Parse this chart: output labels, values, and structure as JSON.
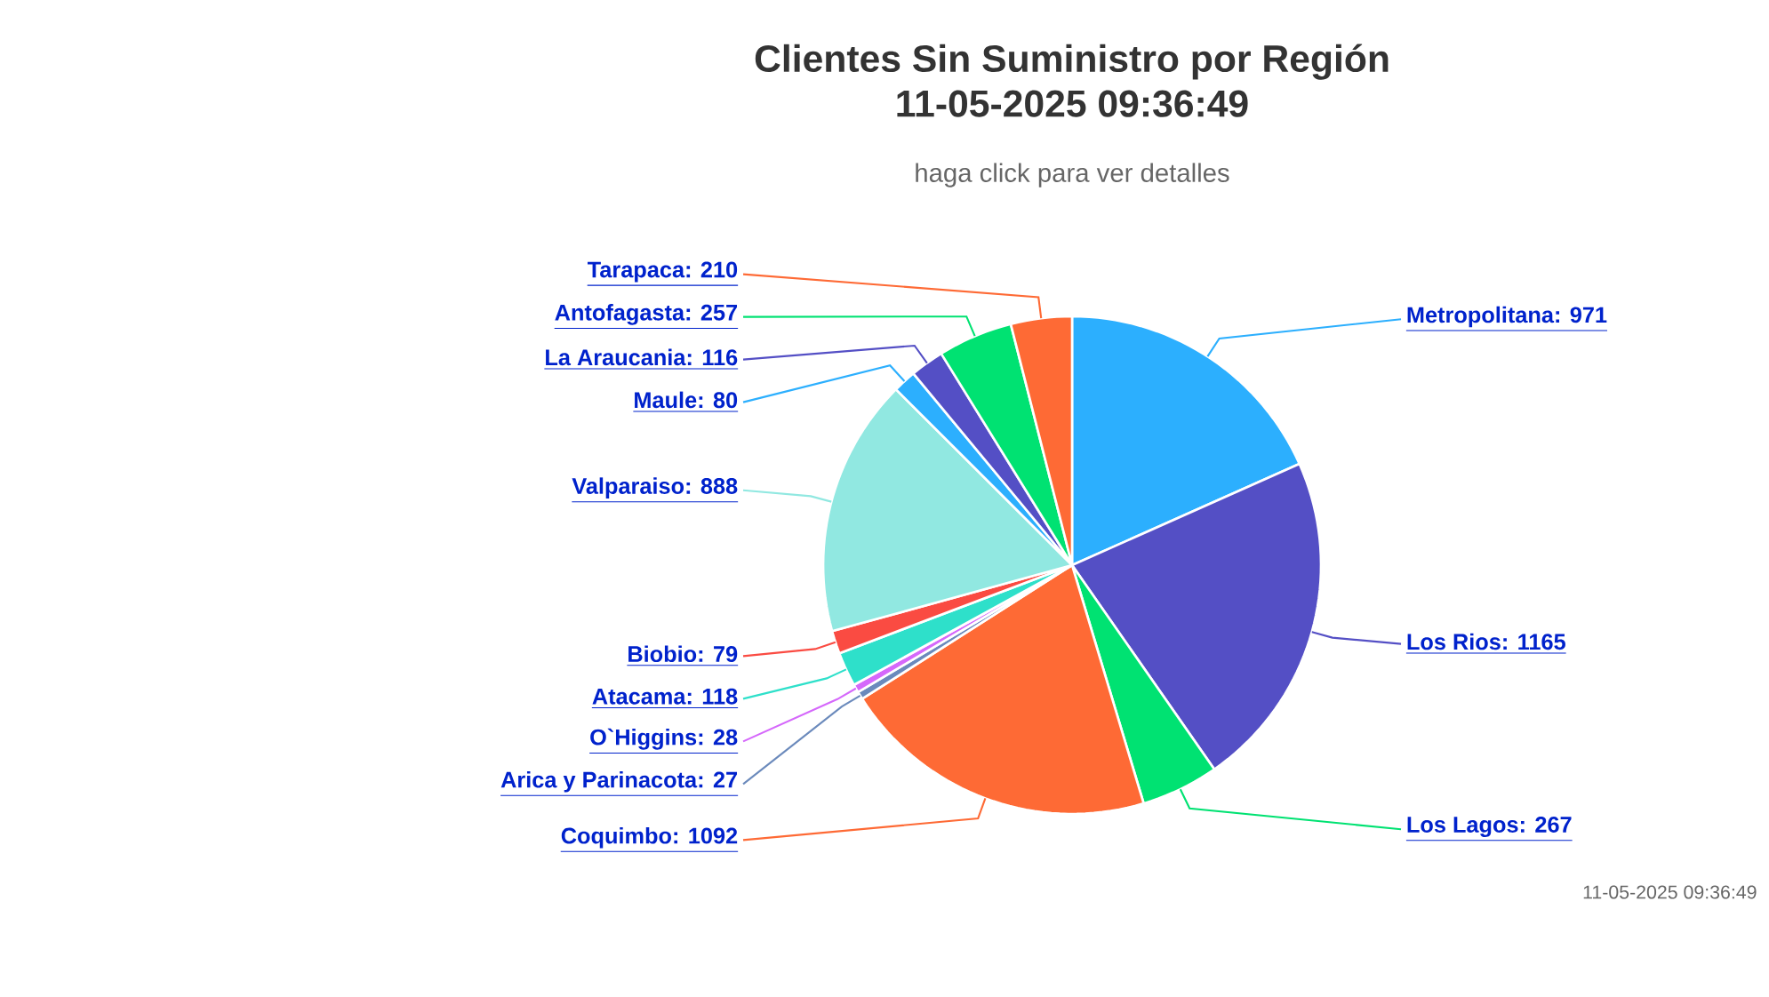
{
  "chart_data": {
    "type": "pie",
    "title": "Clientes Sin Suministro por Región 11-05-2025 09:36:49",
    "subtitle": "haga click para ver detalles",
    "categories": [
      "Metropolitana",
      "Los Rios",
      "Los Lagos",
      "Coquimbo",
      "Arica y Parinacota",
      "O`Higgins",
      "Atacama",
      "Biobio",
      "Valparaiso",
      "Maule",
      "La Araucania",
      "Antofagasta",
      "Tarapaca"
    ],
    "values": [
      971,
      1165,
      267,
      1092,
      27,
      28,
      118,
      79,
      888,
      80,
      116,
      257,
      210
    ],
    "value_labels": [
      ": 971",
      ": 1165",
      ": 267",
      ": 1092",
      ": 27",
      ": 28",
      ": 118",
      ": 79",
      ": 888",
      ": 80",
      ": 116",
      ": 257",
      ": 210"
    ],
    "colors": [
      "#2caffe",
      "#544fc5",
      "#00e272",
      "#fe6a35",
      "#6b8abc",
      "#d568fb",
      "#2ee0ca",
      "#fa4b42",
      "#91e8e1",
      "#2caffe",
      "#544fc5",
      "#00e272",
      "#fe6a35"
    ],
    "annotations": [
      "11-05-2025 09:36:49"
    ]
  }
}
